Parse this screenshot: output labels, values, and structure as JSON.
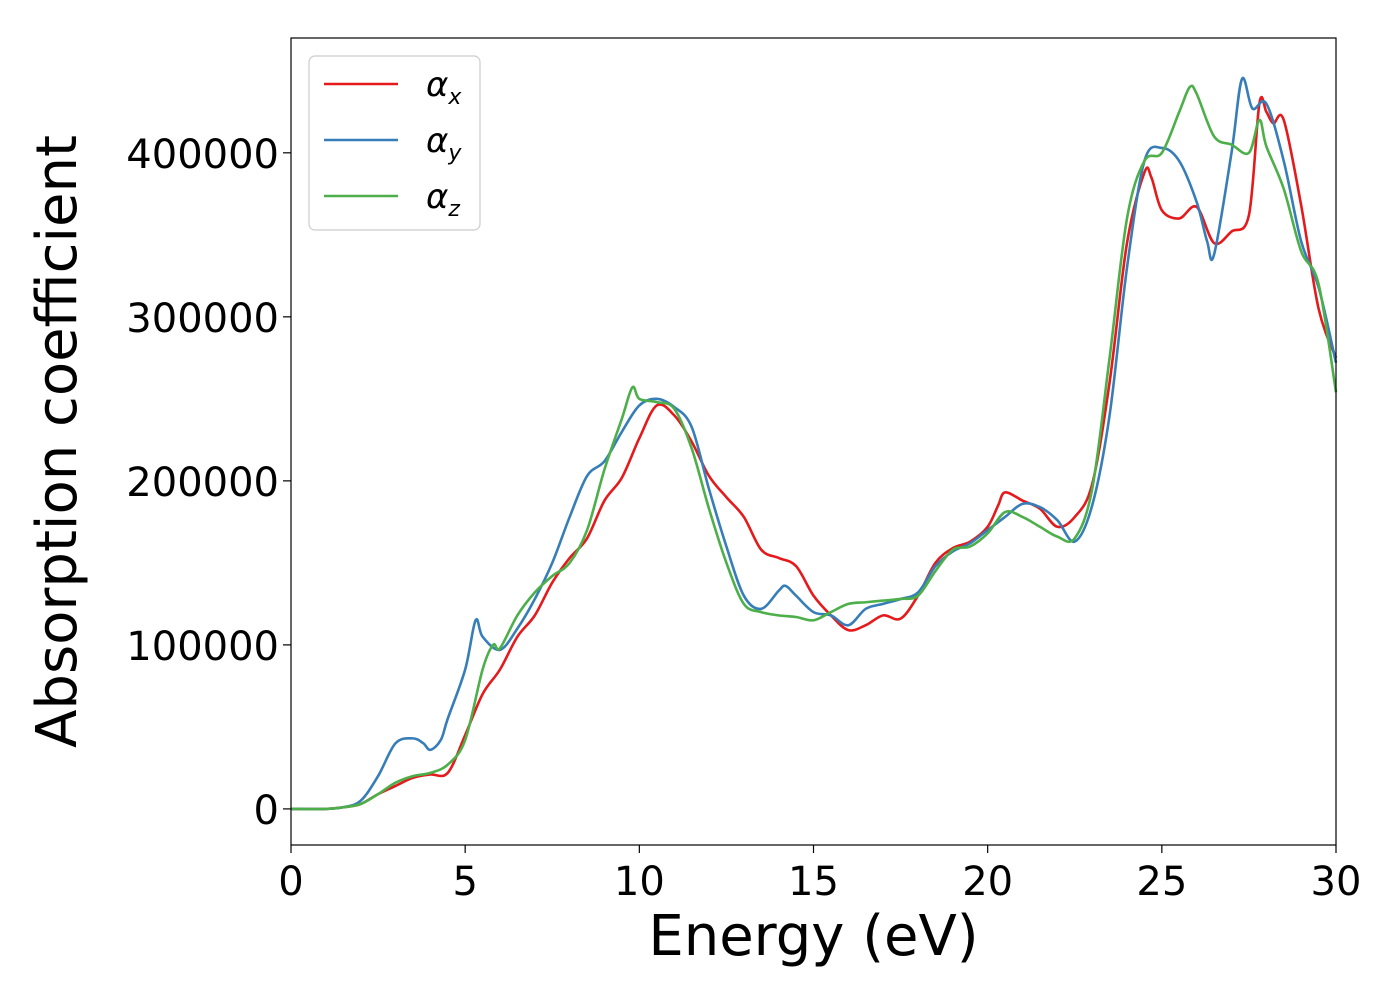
{
  "chart_data": {
    "type": "line",
    "title": "",
    "xlabel": "Energy (eV)",
    "ylabel": "Absorption coefficient",
    "xlim": [
      0,
      30
    ],
    "ylim": [
      -22000,
      470000
    ],
    "xticks": [
      0,
      5,
      10,
      15,
      20,
      25,
      30
    ],
    "yticks": [
      0,
      100000,
      200000,
      300000,
      400000
    ],
    "grid": false,
    "legend_position": "top-left",
    "series": [
      {
        "name": "α",
        "subscript": "x",
        "color": "#e41a1c",
        "x": [
          0,
          1,
          1.5,
          2,
          2.5,
          3,
          3.5,
          4,
          4.5,
          5,
          5.5,
          6,
          6.5,
          7,
          7.5,
          8,
          8.5,
          9,
          9.5,
          10,
          10.5,
          11,
          11.5,
          12,
          12.5,
          13,
          13.5,
          14,
          14.5,
          15,
          15.5,
          16,
          16.5,
          17,
          17.5,
          18,
          18.5,
          19,
          19.5,
          20,
          20.3,
          20.5,
          21,
          21.5,
          22,
          22.5,
          23,
          23.5,
          24,
          24.5,
          24.7,
          25,
          25.5,
          26,
          26.5,
          27,
          27.5,
          27.8,
          28,
          28.2,
          28.5,
          29,
          29.5,
          30
        ],
        "y": [
          0,
          0,
          1000,
          3000,
          9000,
          14000,
          19000,
          21000,
          22000,
          45000,
          70000,
          85000,
          105000,
          118000,
          138000,
          153000,
          165000,
          188000,
          202000,
          226000,
          246000,
          240000,
          224000,
          203000,
          190000,
          178000,
          158000,
          153000,
          148000,
          130000,
          118000,
          109000,
          112000,
          118000,
          116000,
          130000,
          150000,
          159000,
          163000,
          172000,
          185000,
          193000,
          188000,
          183000,
          172000,
          178000,
          198000,
          260000,
          345000,
          388000,
          385000,
          365000,
          360000,
          367000,
          345000,
          352000,
          362000,
          430000,
          425000,
          418000,
          420000,
          368000,
          305000,
          275000
        ]
      },
      {
        "name": "α",
        "subscript": "y",
        "color": "#377eb8",
        "x": [
          0,
          1,
          1.5,
          2,
          2.5,
          3,
          3.5,
          3.8,
          4,
          4.3,
          4.5,
          5,
          5.3,
          5.5,
          6,
          6.5,
          7,
          7.5,
          8,
          8.5,
          9,
          9.5,
          10,
          10.5,
          11,
          11.5,
          12,
          12.5,
          13,
          13.5,
          14,
          14.2,
          14.5,
          15,
          15.5,
          16,
          16.5,
          17,
          17.5,
          18,
          18.5,
          19,
          19.5,
          20,
          20.5,
          21,
          21.5,
          22,
          22.5,
          23,
          23.5,
          24,
          24.5,
          25,
          25.5,
          26,
          26.3,
          26.5,
          27,
          27.3,
          27.6,
          28,
          28.5,
          29,
          29.5,
          30
        ],
        "y": [
          0,
          0,
          1000,
          5000,
          20000,
          40000,
          43000,
          40000,
          36000,
          42000,
          55000,
          85000,
          115000,
          105000,
          97000,
          110000,
          128000,
          150000,
          178000,
          203000,
          212000,
          230000,
          246000,
          250000,
          245000,
          233000,
          195000,
          160000,
          130000,
          122000,
          133000,
          136000,
          130000,
          120000,
          118000,
          112000,
          122000,
          125000,
          128000,
          132000,
          148000,
          157000,
          162000,
          170000,
          178000,
          186000,
          184000,
          176000,
          163000,
          185000,
          240000,
          330000,
          395000,
          403000,
          395000,
          370000,
          346000,
          338000,
          400000,
          445000,
          427000,
          430000,
          395000,
          346000,
          318000,
          272000
        ]
      },
      {
        "name": "α",
        "subscript": "z",
        "color": "#4daf4a",
        "x": [
          0,
          1,
          1.5,
          2,
          2.5,
          3,
          3.5,
          4,
          4.5,
          5,
          5.5,
          5.8,
          6,
          6.5,
          7,
          7.5,
          8,
          8.5,
          9,
          9.5,
          9.8,
          10,
          10.5,
          11,
          11.5,
          12,
          12.5,
          13,
          13.5,
          14,
          14.5,
          15,
          15.5,
          16,
          16.5,
          17,
          17.5,
          18,
          18.5,
          19,
          19.5,
          20,
          20.5,
          21,
          21.5,
          22,
          22.5,
          23,
          23.5,
          24,
          24.5,
          25,
          25.5,
          25.8,
          26,
          26.5,
          27,
          27.5,
          27.8,
          28,
          28.5,
          29,
          29.5,
          30
        ],
        "y": [
          0,
          0,
          1000,
          3000,
          9000,
          16000,
          20000,
          22000,
          27000,
          42000,
          85000,
          100000,
          98000,
          118000,
          132000,
          142000,
          150000,
          170000,
          207000,
          238000,
          257000,
          250000,
          248000,
          244000,
          220000,
          183000,
          150000,
          125000,
          120000,
          118000,
          117000,
          115000,
          120000,
          125000,
          126000,
          127000,
          128000,
          130000,
          145000,
          158000,
          160000,
          168000,
          181000,
          178000,
          172000,
          166000,
          165000,
          195000,
          275000,
          360000,
          395000,
          400000,
          425000,
          440000,
          436000,
          410000,
          405000,
          400000,
          420000,
          404000,
          378000,
          340000,
          320000,
          254000
        ]
      }
    ]
  }
}
